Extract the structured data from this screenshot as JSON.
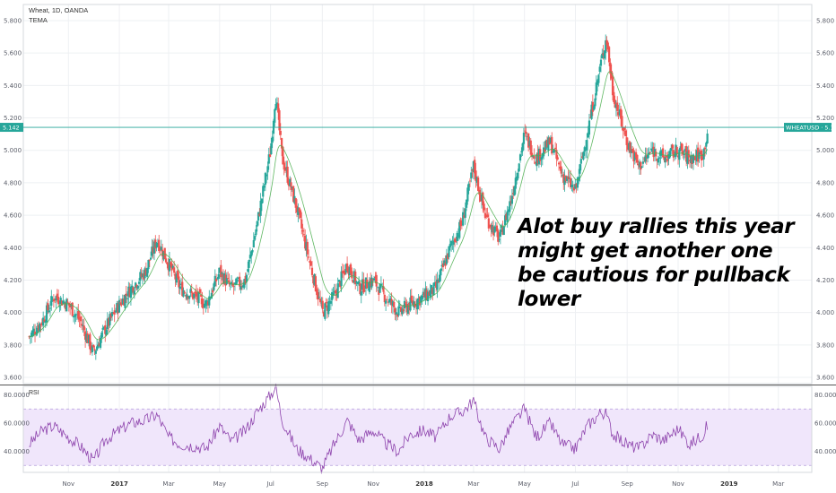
{
  "header": {
    "title": "Wheat, 1D, OANDA",
    "indicator": "TEMA"
  },
  "annotation": [
    "Alot buy rallies this year",
    "might get another one",
    "be cautious for pullback",
    "lower"
  ],
  "rsi_label": "RSI",
  "price_badge_left": "5.142",
  "price_badge_right": "WHEATUSD · 5.142",
  "colors": {
    "up": "#26a69a",
    "down": "#ef5350",
    "tema": "#4caf50",
    "rsi": "#8e44ad",
    "band": "#f0e6fb",
    "price_line": "#26a69a"
  },
  "chart_data": [
    {
      "type": "candlestick",
      "title": "Wheat, 1D, OANDA",
      "series": [
        {
          "name": "TEMA"
        }
      ],
      "x_ticks": [
        "Nov",
        "2017",
        "Mar",
        "May",
        "Jul",
        "Sep",
        "Nov",
        "2018",
        "Mar",
        "May",
        "Jul",
        "Sep",
        "Nov",
        "2019",
        "Mar"
      ],
      "y_ticks": [
        "5.800",
        "5.600",
        "5.400",
        "5.200",
        "5.000",
        "4.800",
        "4.600",
        "4.400",
        "4.200",
        "4.000",
        "3.800",
        "3.600"
      ],
      "ylim": [
        3.6,
        5.8
      ],
      "last_price": 5.142,
      "close_points": [
        {
          "x": "2016-09-15",
          "y": 3.85
        },
        {
          "x": "2016-10-01",
          "y": 3.95
        },
        {
          "x": "2016-10-15",
          "y": 4.1
        },
        {
          "x": "2016-11-01",
          "y": 4.05
        },
        {
          "x": "2016-11-15",
          "y": 3.95
        },
        {
          "x": "2016-12-01",
          "y": 3.75
        },
        {
          "x": "2016-12-15",
          "y": 3.9
        },
        {
          "x": "2017-01-01",
          "y": 4.05
        },
        {
          "x": "2017-01-15",
          "y": 4.15
        },
        {
          "x": "2017-02-01",
          "y": 4.25
        },
        {
          "x": "2017-02-15",
          "y": 4.45
        },
        {
          "x": "2017-03-01",
          "y": 4.3
        },
        {
          "x": "2017-03-15",
          "y": 4.15
        },
        {
          "x": "2017-04-01",
          "y": 4.1
        },
        {
          "x": "2017-04-15",
          "y": 4.05
        },
        {
          "x": "2017-05-01",
          "y": 4.25
        },
        {
          "x": "2017-05-15",
          "y": 4.15
        },
        {
          "x": "2017-06-01",
          "y": 4.2
        },
        {
          "x": "2017-06-15",
          "y": 4.55
        },
        {
          "x": "2017-07-01",
          "y": 5.0
        },
        {
          "x": "2017-07-07",
          "y": 5.35
        },
        {
          "x": "2017-07-15",
          "y": 4.95
        },
        {
          "x": "2017-08-01",
          "y": 4.65
        },
        {
          "x": "2017-08-15",
          "y": 4.35
        },
        {
          "x": "2017-09-01",
          "y": 4.0
        },
        {
          "x": "2017-09-15",
          "y": 4.1
        },
        {
          "x": "2017-10-01",
          "y": 4.3
        },
        {
          "x": "2017-10-15",
          "y": 4.15
        },
        {
          "x": "2017-11-01",
          "y": 4.2
        },
        {
          "x": "2017-11-15",
          "y": 4.1
        },
        {
          "x": "2017-12-01",
          "y": 4.0
        },
        {
          "x": "2017-12-15",
          "y": 4.05
        },
        {
          "x": "2018-01-01",
          "y": 4.1
        },
        {
          "x": "2018-01-15",
          "y": 4.15
        },
        {
          "x": "2018-02-01",
          "y": 4.4
        },
        {
          "x": "2018-02-15",
          "y": 4.55
        },
        {
          "x": "2018-03-01",
          "y": 4.9
        },
        {
          "x": "2018-03-15",
          "y": 4.6
        },
        {
          "x": "2018-04-01",
          "y": 4.45
        },
        {
          "x": "2018-04-15",
          "y": 4.7
        },
        {
          "x": "2018-05-01",
          "y": 5.1
        },
        {
          "x": "2018-05-15",
          "y": 4.95
        },
        {
          "x": "2018-06-01",
          "y": 5.05
        },
        {
          "x": "2018-06-15",
          "y": 4.85
        },
        {
          "x": "2018-07-01",
          "y": 4.75
        },
        {
          "x": "2018-07-15",
          "y": 5.1
        },
        {
          "x": "2018-08-01",
          "y": 5.55
        },
        {
          "x": "2018-08-07",
          "y": 5.7
        },
        {
          "x": "2018-08-15",
          "y": 5.35
        },
        {
          "x": "2018-09-01",
          "y": 5.05
        },
        {
          "x": "2018-09-15",
          "y": 4.9
        },
        {
          "x": "2018-10-01",
          "y": 5.0
        },
        {
          "x": "2018-10-15",
          "y": 4.95
        },
        {
          "x": "2018-11-01",
          "y": 5.0
        },
        {
          "x": "2018-11-15",
          "y": 4.95
        },
        {
          "x": "2018-12-01",
          "y": 4.98
        },
        {
          "x": "2018-12-07",
          "y": 5.142
        }
      ]
    },
    {
      "type": "line",
      "title": "RSI",
      "y_ticks": [
        "80.0000",
        "60.0000",
        "40.0000"
      ],
      "band": [
        30,
        70
      ],
      "points": [
        {
          "x": "2016-09-15",
          "y": 45
        },
        {
          "x": "2016-10-01",
          "y": 55
        },
        {
          "x": "2016-10-15",
          "y": 58
        },
        {
          "x": "2016-11-01",
          "y": 50
        },
        {
          "x": "2016-11-15",
          "y": 44
        },
        {
          "x": "2016-12-01",
          "y": 33
        },
        {
          "x": "2016-12-15",
          "y": 48
        },
        {
          "x": "2017-01-01",
          "y": 55
        },
        {
          "x": "2017-01-15",
          "y": 60
        },
        {
          "x": "2017-02-01",
          "y": 62
        },
        {
          "x": "2017-02-15",
          "y": 66
        },
        {
          "x": "2017-03-01",
          "y": 50
        },
        {
          "x": "2017-03-15",
          "y": 45
        },
        {
          "x": "2017-04-01",
          "y": 44
        },
        {
          "x": "2017-04-15",
          "y": 42
        },
        {
          "x": "2017-05-01",
          "y": 58
        },
        {
          "x": "2017-05-15",
          "y": 47
        },
        {
          "x": "2017-06-01",
          "y": 55
        },
        {
          "x": "2017-06-15",
          "y": 68
        },
        {
          "x": "2017-07-01",
          "y": 80
        },
        {
          "x": "2017-07-07",
          "y": 86
        },
        {
          "x": "2017-07-15",
          "y": 62
        },
        {
          "x": "2017-08-01",
          "y": 42
        },
        {
          "x": "2017-08-15",
          "y": 36
        },
        {
          "x": "2017-09-01",
          "y": 28
        },
        {
          "x": "2017-09-15",
          "y": 45
        },
        {
          "x": "2017-10-01",
          "y": 62
        },
        {
          "x": "2017-10-15",
          "y": 48
        },
        {
          "x": "2017-11-01",
          "y": 55
        },
        {
          "x": "2017-11-15",
          "y": 46
        },
        {
          "x": "2017-12-01",
          "y": 40
        },
        {
          "x": "2017-12-15",
          "y": 52
        },
        {
          "x": "2018-01-01",
          "y": 55
        },
        {
          "x": "2018-01-15",
          "y": 50
        },
        {
          "x": "2018-02-01",
          "y": 65
        },
        {
          "x": "2018-02-15",
          "y": 68
        },
        {
          "x": "2018-03-01",
          "y": 76
        },
        {
          "x": "2018-03-15",
          "y": 50
        },
        {
          "x": "2018-04-01",
          "y": 42
        },
        {
          "x": "2018-04-15",
          "y": 58
        },
        {
          "x": "2018-05-01",
          "y": 70
        },
        {
          "x": "2018-05-15",
          "y": 50
        },
        {
          "x": "2018-06-01",
          "y": 60
        },
        {
          "x": "2018-06-15",
          "y": 45
        },
        {
          "x": "2018-07-01",
          "y": 42
        },
        {
          "x": "2018-07-15",
          "y": 58
        },
        {
          "x": "2018-08-01",
          "y": 68
        },
        {
          "x": "2018-08-07",
          "y": 66
        },
        {
          "x": "2018-08-15",
          "y": 52
        },
        {
          "x": "2018-09-01",
          "y": 45
        },
        {
          "x": "2018-09-15",
          "y": 42
        },
        {
          "x": "2018-10-01",
          "y": 52
        },
        {
          "x": "2018-10-15",
          "y": 48
        },
        {
          "x": "2018-11-01",
          "y": 56
        },
        {
          "x": "2018-11-15",
          "y": 45
        },
        {
          "x": "2018-12-01",
          "y": 52
        },
        {
          "x": "2018-12-07",
          "y": 60
        }
      ]
    }
  ]
}
